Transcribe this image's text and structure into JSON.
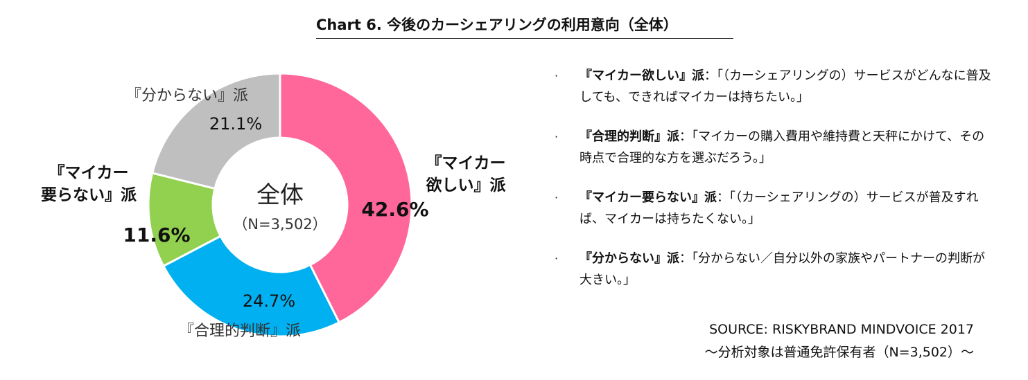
{
  "title": "Chart 6.  今後のカーシェアリングの利用意向（全体）",
  "chart_data": {
    "type": "pie",
    "center_label": "全体",
    "center_sublabel": "（N=3,502）",
    "slices": [
      {
        "name": "『マイカー欲しい』派",
        "label_lines": [
          "『マイカー",
          "欲しい』派"
        ],
        "value": 42.6,
        "value_text": "42.6%",
        "color": "#ff6699",
        "emphasis": true
      },
      {
        "name": "『合理的判断』派",
        "label_lines": [
          "『合理的判断』派"
        ],
        "value": 24.7,
        "value_text": "24.7%",
        "color": "#00b0f0",
        "emphasis": false
      },
      {
        "name": "『マイカー要らない』派",
        "label_lines": [
          "『マイカー",
          "要らない』派"
        ],
        "value": 11.6,
        "value_text": "11.6%",
        "color": "#92d050",
        "emphasis": true
      },
      {
        "name": "『分からない』派",
        "label_lines": [
          "『分からない』派"
        ],
        "value": 21.1,
        "value_text": "21.1%",
        "color": "#bfbfbf",
        "emphasis": false
      }
    ]
  },
  "descriptions": [
    {
      "bullet": "·",
      "head": "『マイカー欲しい』派",
      "sep": "：",
      "text": "「（カーシェアリングの）サービスがどんなに普及しても、できればマイカーは持ちたい。」"
    },
    {
      "bullet": "·",
      "head": "『合理的判断』派",
      "sep": "：",
      "text": "「マイカーの購入費用や維持費と天秤にかけて、その時点で合理的な方を選ぶだろう。」"
    },
    {
      "bullet": "·",
      "head": "『マイカー要らない』派",
      "sep": "：",
      "text": "「（カーシェアリングの）サービスが普及すれば、マイカーは持ちたくない。」"
    },
    {
      "bullet": "·",
      "head": "『分からない』派",
      "sep": "：",
      "text": "「分からない／自分以外の家族やパートナーの判断が大きい。」"
    }
  ],
  "source": {
    "line1": "SOURCE: RISKYBRAND MINDVOICE 2017",
    "line2": "～分析対象は普通免許保有者（N=3,502）～"
  }
}
